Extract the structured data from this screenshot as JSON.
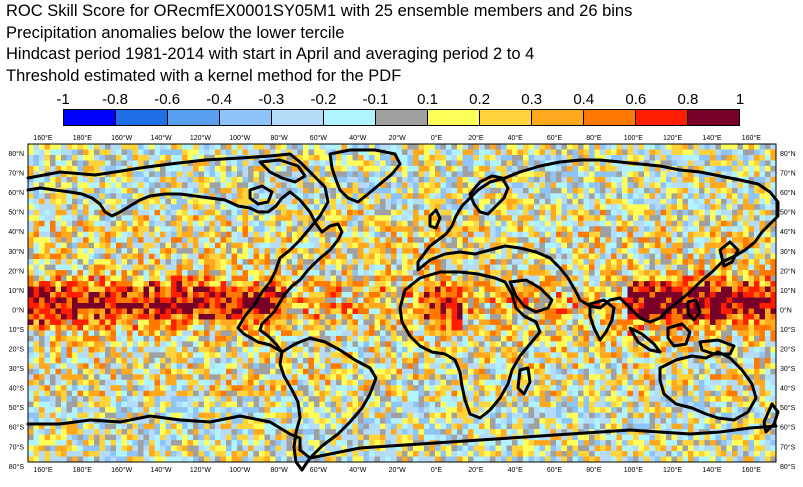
{
  "title_lines": [
    "ROC Skill Score for ORecmfEX0001SY05M1 with 25 ensemble members and 26 bins",
    "Precipitation anomalies below the lower tercile",
    "Hindcast period 1981-2014 with start in April and averaging period  2 to  4",
    "Threshold estimated with a kernel method for the PDF"
  ],
  "colorbar": {
    "labels": [
      "-1",
      "-0.8",
      "-0.6",
      "-0.4",
      "-0.3",
      "-0.2",
      "-0.1",
      "0.1",
      "0.2",
      "0.3",
      "0.4",
      "0.6",
      "0.8",
      "1"
    ],
    "colors": [
      "#0000ff",
      "#1f6fe6",
      "#5aa0f0",
      "#8ec4f7",
      "#b4dcf9",
      "#b0f4ff",
      "#a0a0a0",
      "#ffff5a",
      "#ffd43a",
      "#ffaa1e",
      "#ff7800",
      "#ff1e00",
      "#780028"
    ]
  },
  "map": {
    "lon_labels": [
      "160°E",
      "180°E",
      "160°W",
      "140°W",
      "120°W",
      "100°W",
      "80°W",
      "60°W",
      "40°W",
      "20°W",
      "0°E",
      "20°E",
      "40°E",
      "60°E",
      "80°E",
      "100°E",
      "120°E",
      "140°E",
      "160°E"
    ],
    "lat_labels": [
      "80°N",
      "70°N",
      "60°N",
      "50°N",
      "40°N",
      "30°N",
      "20°N",
      "10°N",
      "0°N",
      "10°S",
      "20°S",
      "30°S",
      "40°S",
      "50°S",
      "60°S",
      "70°S",
      "80°S"
    ]
  }
}
